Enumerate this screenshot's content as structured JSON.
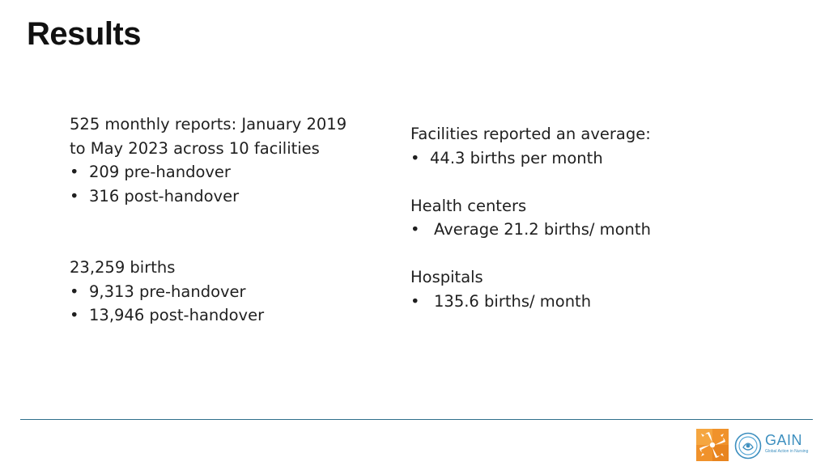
{
  "slide": {
    "title": "Results"
  },
  "left": {
    "reports": {
      "line1": "525 monthly reports: January 2019",
      "line2": "to May 2023 across 10 facilities",
      "bullets": [
        "209 pre-handover",
        "316 post-handover"
      ]
    },
    "births": {
      "heading": "23,259 births",
      "bullets": [
        "9,313 pre-handover",
        "13,946 post-handover"
      ]
    }
  },
  "right": {
    "average": {
      "heading": "Facilities reported an average:",
      "bullets": [
        "44.3 births per month"
      ]
    },
    "health_centers": {
      "heading": "Health centers",
      "bullets": [
        "Average 21.2 births/ month"
      ]
    },
    "hospitals": {
      "heading": "Hospitals",
      "bullets": [
        "135.6 births/ month"
      ]
    }
  },
  "footer": {
    "gain_logo": {
      "word": "GAIN",
      "tagline": "Global Action in Nursing",
      "color": "#3d8fbf"
    },
    "hands_logo": {
      "icon": "hands-icon",
      "color": "#f0922b"
    },
    "divider_color": "#2f6f8c"
  }
}
